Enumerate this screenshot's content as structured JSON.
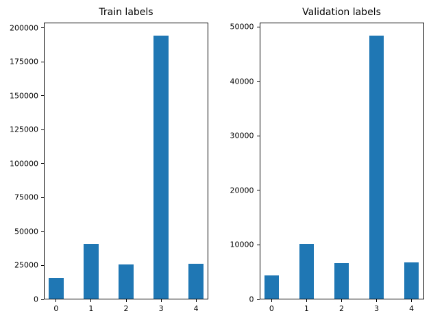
{
  "figure": {
    "background": "#ffffff"
  },
  "chart_data": [
    {
      "type": "bar",
      "title": "Train labels",
      "categories": [
        "0",
        "1",
        "2",
        "3",
        "4"
      ],
      "values": [
        15000,
        40500,
        25500,
        194000,
        26000
      ],
      "xlabel": "",
      "ylabel": "",
      "ylim": [
        0,
        204000
      ],
      "yticks": [
        0,
        25000,
        50000,
        75000,
        100000,
        125000,
        150000,
        175000,
        200000
      ],
      "bar_color": "#1f77b4",
      "grid": false,
      "legend": "none"
    },
    {
      "type": "bar",
      "title": "Validation labels",
      "categories": [
        "0",
        "1",
        "2",
        "3",
        "4"
      ],
      "values": [
        4300,
        10100,
        6500,
        48300,
        6700
      ],
      "xlabel": "",
      "ylabel": "",
      "ylim": [
        0,
        50800
      ],
      "yticks": [
        0,
        10000,
        20000,
        30000,
        40000,
        50000
      ],
      "bar_color": "#1f77b4",
      "grid": false,
      "legend": "none"
    }
  ]
}
